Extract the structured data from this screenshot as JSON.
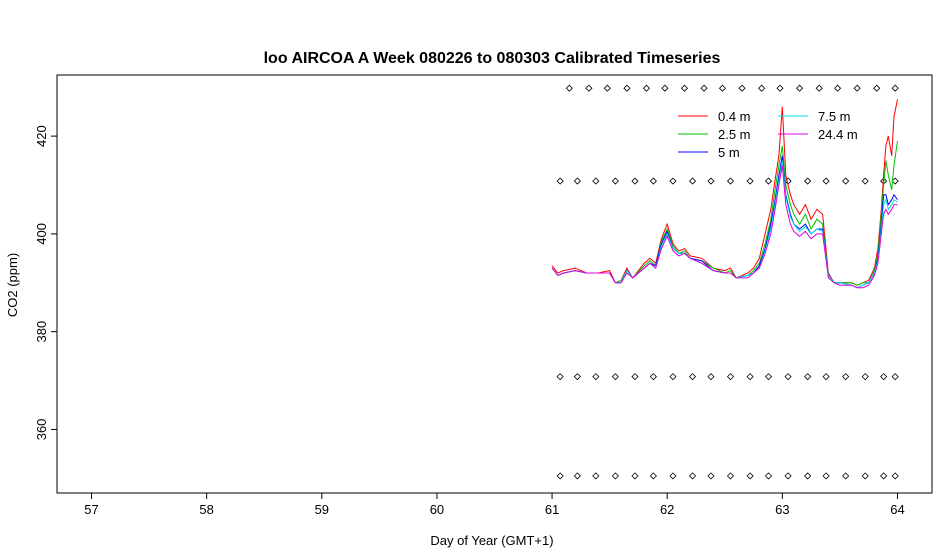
{
  "chart_data": {
    "type": "line",
    "title": "loo AIRCOA A  Week 080226 to 080303  Calibrated Timeseries",
    "xlabel": "Day of Year (GMT+1)",
    "ylabel": "CO2 (ppm)",
    "xlim": [
      56.7,
      64.3
    ],
    "ylim": [
      347,
      432.5
    ],
    "x_ticks": [
      57,
      58,
      59,
      60,
      61,
      62,
      63,
      64
    ],
    "y_ticks": [
      360,
      380,
      400,
      420
    ],
    "grid": false,
    "legend": {
      "placement": "top-right",
      "columns": 2
    },
    "series": [
      {
        "name": "0.4 m",
        "color": "#ff0000",
        "x": [
          61.0,
          61.05,
          61.1,
          61.2,
          61.3,
          61.4,
          61.5,
          61.55,
          61.6,
          61.65,
          61.7,
          61.8,
          61.85,
          61.9,
          61.95,
          62.0,
          62.05,
          62.1,
          62.15,
          62.2,
          62.3,
          62.4,
          62.5,
          62.55,
          62.6,
          62.7,
          62.75,
          62.8,
          62.85,
          62.9,
          62.93,
          62.97,
          63.0,
          63.03,
          63.07,
          63.1,
          63.15,
          63.2,
          63.25,
          63.3,
          63.35,
          63.4,
          63.45,
          63.5,
          63.6,
          63.65,
          63.7,
          63.75,
          63.8,
          63.83,
          63.86,
          63.88,
          63.9,
          63.92,
          63.95,
          63.97,
          64.0
        ],
        "y": [
          393.5,
          392.0,
          392.5,
          393.0,
          392.0,
          392.0,
          392.5,
          390.0,
          390.5,
          393.0,
          391.0,
          394.0,
          395.0,
          394.0,
          399.0,
          402.0,
          398.0,
          396.5,
          397.0,
          395.5,
          395.0,
          393.0,
          392.5,
          393.0,
          391.0,
          392.0,
          393.0,
          395.0,
          400.0,
          405.0,
          410.0,
          416.0,
          426.0,
          412.0,
          408.0,
          406.0,
          404.0,
          406.0,
          403.0,
          405.0,
          404.0,
          392.0,
          390.0,
          390.0,
          390.0,
          389.5,
          390.0,
          390.5,
          393.0,
          397.0,
          405.0,
          412.0,
          418.0,
          420.0,
          416.0,
          424.0,
          427.5
        ]
      },
      {
        "name": "2.5 m",
        "color": "#00c000",
        "x": [
          61.0,
          61.05,
          61.1,
          61.2,
          61.3,
          61.4,
          61.5,
          61.55,
          61.6,
          61.65,
          61.7,
          61.8,
          61.85,
          61.9,
          61.95,
          62.0,
          62.05,
          62.1,
          62.15,
          62.2,
          62.3,
          62.4,
          62.5,
          62.55,
          62.6,
          62.7,
          62.75,
          62.8,
          62.85,
          62.9,
          62.93,
          62.97,
          63.0,
          63.03,
          63.07,
          63.1,
          63.15,
          63.2,
          63.25,
          63.3,
          63.35,
          63.4,
          63.45,
          63.5,
          63.6,
          63.65,
          63.7,
          63.75,
          63.8,
          63.83,
          63.86,
          63.88,
          63.9,
          63.92,
          63.95,
          63.97,
          64.0
        ],
        "y": [
          393.0,
          391.5,
          392.0,
          392.5,
          392.0,
          392.0,
          392.0,
          390.0,
          390.5,
          392.5,
          391.0,
          393.5,
          394.5,
          393.5,
          398.5,
          401.0,
          397.5,
          396.0,
          396.5,
          395.0,
          394.5,
          393.0,
          392.0,
          392.5,
          391.0,
          391.5,
          392.5,
          394.0,
          398.0,
          403.0,
          408.0,
          414.0,
          418.0,
          410.0,
          406.0,
          404.0,
          402.0,
          404.0,
          401.0,
          403.0,
          402.0,
          391.5,
          390.0,
          390.0,
          390.0,
          389.5,
          390.0,
          390.0,
          392.5,
          396.0,
          404.0,
          410.0,
          415.0,
          412.0,
          409.0,
          414.0,
          419.0
        ]
      },
      {
        "name": "5 m",
        "color": "#0000ff",
        "x": [
          61.0,
          61.05,
          61.1,
          61.2,
          61.3,
          61.4,
          61.5,
          61.55,
          61.6,
          61.65,
          61.7,
          61.8,
          61.85,
          61.9,
          61.95,
          62.0,
          62.05,
          62.1,
          62.15,
          62.2,
          62.3,
          62.4,
          62.5,
          62.55,
          62.6,
          62.7,
          62.75,
          62.8,
          62.85,
          62.9,
          62.93,
          62.97,
          63.0,
          63.03,
          63.07,
          63.1,
          63.15,
          63.2,
          63.25,
          63.3,
          63.35,
          63.4,
          63.45,
          63.5,
          63.6,
          63.65,
          63.7,
          63.75,
          63.8,
          63.83,
          63.86,
          63.88,
          63.9,
          63.92,
          63.95,
          63.97,
          64.0
        ],
        "y": [
          393.0,
          391.5,
          392.0,
          392.5,
          392.0,
          392.0,
          392.0,
          390.0,
          390.0,
          392.5,
          391.0,
          393.0,
          394.0,
          393.5,
          398.0,
          400.5,
          397.0,
          396.0,
          396.0,
          395.0,
          394.5,
          392.5,
          392.0,
          392.0,
          391.0,
          391.5,
          392.0,
          393.5,
          397.0,
          402.0,
          406.0,
          412.0,
          416.0,
          408.0,
          404.0,
          402.0,
          401.0,
          402.0,
          400.0,
          401.0,
          401.0,
          391.5,
          390.0,
          390.0,
          389.5,
          389.0,
          389.5,
          390.0,
          392.0,
          395.0,
          402.0,
          408.0,
          408.0,
          406.0,
          407.0,
          408.0,
          407.0
        ]
      },
      {
        "name": "7.5 m",
        "color": "#00e0e0",
        "x": [
          61.0,
          61.05,
          61.1,
          61.2,
          61.3,
          61.4,
          61.5,
          61.55,
          61.6,
          61.65,
          61.7,
          61.8,
          61.85,
          61.9,
          61.95,
          62.0,
          62.05,
          62.1,
          62.15,
          62.2,
          62.3,
          62.4,
          62.5,
          62.55,
          62.6,
          62.7,
          62.75,
          62.8,
          62.85,
          62.9,
          62.93,
          62.97,
          63.0,
          63.03,
          63.07,
          63.1,
          63.15,
          63.2,
          63.25,
          63.3,
          63.35,
          63.4,
          63.45,
          63.5,
          63.6,
          63.65,
          63.7,
          63.75,
          63.8,
          63.83,
          63.86,
          63.88,
          63.9,
          63.92,
          63.95,
          63.97,
          64.0
        ],
        "y": [
          393.0,
          391.5,
          392.0,
          392.5,
          392.0,
          392.0,
          392.0,
          390.0,
          390.0,
          392.5,
          391.0,
          393.0,
          394.0,
          393.0,
          397.5,
          400.0,
          397.0,
          396.0,
          396.0,
          395.0,
          394.0,
          392.5,
          392.0,
          392.0,
          391.0,
          391.5,
          392.0,
          393.0,
          396.5,
          401.0,
          405.0,
          411.0,
          415.0,
          407.5,
          403.5,
          402.0,
          400.5,
          401.5,
          400.0,
          401.0,
          400.5,
          391.5,
          390.0,
          390.0,
          389.5,
          389.0,
          389.5,
          390.0,
          392.0,
          394.5,
          401.0,
          406.0,
          407.0,
          405.0,
          406.0,
          407.0,
          406.5
        ]
      },
      {
        "name": "24.4 m",
        "color": "#e000e0",
        "x": [
          61.0,
          61.05,
          61.1,
          61.2,
          61.3,
          61.4,
          61.5,
          61.55,
          61.6,
          61.65,
          61.7,
          61.8,
          61.85,
          61.9,
          61.95,
          62.0,
          62.05,
          62.1,
          62.15,
          62.2,
          62.3,
          62.4,
          62.5,
          62.55,
          62.6,
          62.7,
          62.75,
          62.8,
          62.85,
          62.9,
          62.93,
          62.97,
          63.0,
          63.03,
          63.07,
          63.1,
          63.15,
          63.2,
          63.25,
          63.3,
          63.35,
          63.4,
          63.45,
          63.5,
          63.6,
          63.65,
          63.7,
          63.75,
          63.8,
          63.83,
          63.86,
          63.88,
          63.9,
          63.92,
          63.95,
          63.97,
          64.0
        ],
        "y": [
          393.0,
          391.5,
          392.0,
          392.5,
          392.0,
          392.0,
          392.0,
          390.0,
          390.0,
          392.0,
          391.0,
          393.0,
          394.0,
          393.0,
          397.0,
          399.5,
          396.5,
          395.5,
          396.0,
          395.0,
          394.0,
          392.5,
          392.0,
          392.0,
          391.0,
          391.0,
          392.0,
          393.0,
          396.0,
          400.0,
          404.0,
          410.0,
          414.0,
          406.0,
          402.0,
          400.5,
          399.5,
          400.5,
          399.0,
          400.0,
          400.0,
          391.0,
          390.0,
          389.5,
          389.5,
          389.0,
          389.0,
          389.5,
          391.5,
          394.0,
          400.0,
          404.0,
          405.0,
          404.0,
          405.0,
          406.0,
          406.0
        ]
      }
    ],
    "markers": {
      "symbol": "open-diamond",
      "rows": [
        {
          "y": 429.8,
          "x": [
            61.15,
            61.32,
            61.48,
            61.65,
            61.82,
            61.98,
            62.15,
            62.32,
            62.48,
            62.65,
            62.82,
            62.98,
            63.15,
            63.32,
            63.48,
            63.65,
            63.82,
            63.98
          ]
        },
        {
          "y": 410.8,
          "x": [
            61.07,
            61.22,
            61.38,
            61.55,
            61.72,
            61.88,
            62.05,
            62.22,
            62.38,
            62.55,
            62.72,
            62.88,
            63.05,
            63.22,
            63.38,
            63.55,
            63.72,
            63.88,
            63.98
          ]
        },
        {
          "y": 370.8,
          "x": [
            61.07,
            61.22,
            61.38,
            61.55,
            61.72,
            61.88,
            62.05,
            62.22,
            62.38,
            62.55,
            62.72,
            62.88,
            63.05,
            63.22,
            63.38,
            63.55,
            63.72,
            63.88,
            63.98
          ]
        },
        {
          "y": 350.5,
          "x": [
            61.07,
            61.22,
            61.38,
            61.55,
            61.72,
            61.88,
            62.05,
            62.22,
            62.38,
            62.55,
            62.72,
            62.88,
            63.05,
            63.22,
            63.38,
            63.55,
            63.72,
            63.88,
            63.98
          ]
        }
      ]
    }
  }
}
